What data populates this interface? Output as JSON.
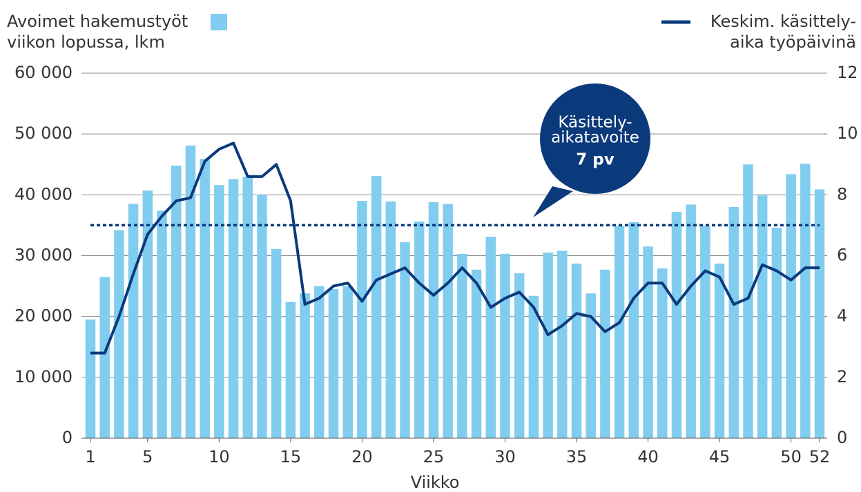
{
  "chart_data": {
    "type": "bar_line",
    "x_label": "Viikko",
    "categories": [
      "1",
      null,
      null,
      null,
      "5",
      null,
      null,
      null,
      null,
      "10",
      null,
      null,
      null,
      null,
      "15",
      null,
      null,
      null,
      null,
      "20",
      null,
      null,
      null,
      null,
      "25",
      null,
      null,
      null,
      null,
      "30",
      null,
      null,
      null,
      null,
      "35",
      null,
      null,
      null,
      null,
      "40",
      null,
      null,
      null,
      null,
      "45",
      null,
      null,
      null,
      null,
      "50",
      null,
      "52"
    ],
    "series": [
      {
        "name": [
          "Avoimet hakemustyöt",
          "viikon lopussa, lkm"
        ],
        "color": "#80cdef",
        "axis": "y",
        "values": [
          19500,
          26500,
          34200,
          38500,
          40700,
          37400,
          44800,
          48100,
          45900,
          41600,
          42600,
          43000,
          40000,
          31100,
          22400,
          23800,
          25000,
          24500,
          25000,
          39000,
          43100,
          38900,
          32200,
          35600,
          38800,
          38500,
          30300,
          27700,
          33100,
          30300,
          27100,
          23400,
          30500,
          30800,
          28700,
          23800,
          27700,
          34900,
          35500,
          31500,
          27900,
          37200,
          38400,
          34900,
          28700,
          38000,
          45000,
          39900,
          34600,
          43400,
          45100,
          40900
        ]
      },
      {
        "name": [
          "Keskim. käsittely-",
          "aika työpäivinä"
        ],
        "color": "#0b3a7c",
        "axis": "y2",
        "values": [
          2.8,
          2.8,
          4.0,
          5.4,
          6.7,
          7.3,
          7.8,
          7.9,
          9.1,
          9.5,
          9.7,
          8.6,
          8.6,
          9.0,
          7.8,
          4.4,
          4.6,
          5.0,
          5.1,
          4.5,
          5.2,
          5.4,
          5.6,
          5.1,
          4.7,
          5.1,
          5.6,
          5.1,
          4.3,
          4.6,
          4.8,
          4.3,
          3.4,
          3.7,
          4.1,
          4.0,
          3.5,
          3.8,
          4.6,
          5.1,
          5.1,
          4.4,
          5.0,
          5.5,
          5.3,
          4.4,
          4.6,
          5.7,
          5.5,
          5.2,
          5.6,
          5.6
        ]
      }
    ],
    "target": {
      "value": 7,
      "axis": "y2",
      "color": "#0b3a7c",
      "label": [
        "Käsittely-",
        "aikatavoite",
        "7 pv"
      ]
    },
    "ylim": [
      0,
      60000
    ],
    "yticks": [
      0,
      {
        "value": 10000,
        "label": "10 000"
      },
      {
        "value": 20000,
        "label": "20 000"
      },
      {
        "value": 30000,
        "label": "30 000"
      },
      {
        "value": 40000,
        "label": "40 000"
      },
      {
        "value": 50000,
        "label": "50 000"
      },
      {
        "value": 60000,
        "label": "60 000"
      }
    ],
    "y2lim": [
      0,
      12
    ],
    "y2ticks": [
      0,
      2,
      4,
      6,
      8,
      10,
      12
    ],
    "grid": true
  }
}
